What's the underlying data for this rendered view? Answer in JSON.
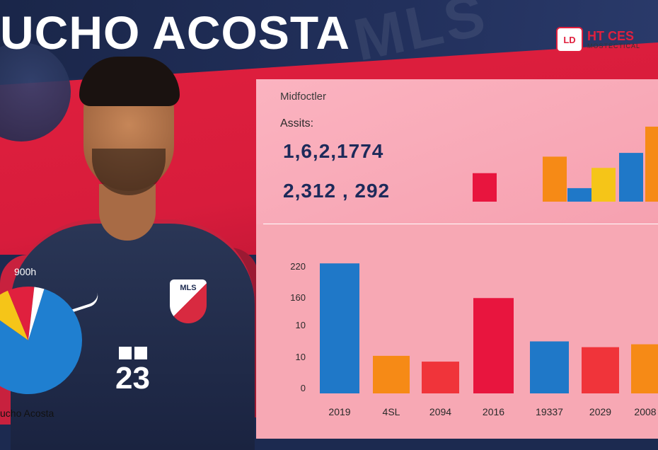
{
  "header": {
    "title": "UCHO ACOSTA",
    "watermark": "MLS",
    "logo_mark": "LD",
    "logo_line1": "HT CES",
    "logo_line2": "MOSTECTICAL"
  },
  "player": {
    "jersey_number": "23",
    "crest_text": "MLS"
  },
  "left_pie": {
    "label": "900h",
    "name": "ucho Acosta",
    "slices": [
      {
        "value": 80,
        "color": "#1f7fd0"
      },
      {
        "value": 9,
        "color": "#f5c518"
      },
      {
        "value": 8,
        "color": "#e0203e"
      },
      {
        "value": 3,
        "color": "#ffffff"
      }
    ]
  },
  "stats_panel": {
    "role": "Midfoctler",
    "assists_label": "Assits:",
    "stat_line_1": "1,6,2,1774",
    "stat_line_2": "2,312 , 292"
  },
  "chart_data": [
    {
      "type": "bar",
      "title": "",
      "values": [
        38,
        0,
        60,
        18,
        45,
        65,
        100
      ],
      "colors": [
        "#e8153e",
        "transparent",
        "#f68a16",
        "#1f78c8",
        "#f5c518",
        "#1f78c8",
        "#f68a16"
      ],
      "ylim": [
        0,
        100
      ]
    },
    {
      "type": "bar",
      "title": "",
      "categories": [
        "2019",
        "4SL",
        "2094",
        "2016",
        "19337",
        "2029",
        "2008"
      ],
      "values": [
        225,
        65,
        55,
        165,
        90,
        80,
        85
      ],
      "colors": [
        "#1f78c8",
        "#f68a16",
        "#f0343a",
        "#e8153e",
        "#1f78c8",
        "#f0343a",
        "#f68a16"
      ],
      "yticks": [
        "220",
        "160",
        "10",
        "10",
        "0"
      ],
      "ylim": [
        0,
        240
      ],
      "grid": false
    }
  ]
}
